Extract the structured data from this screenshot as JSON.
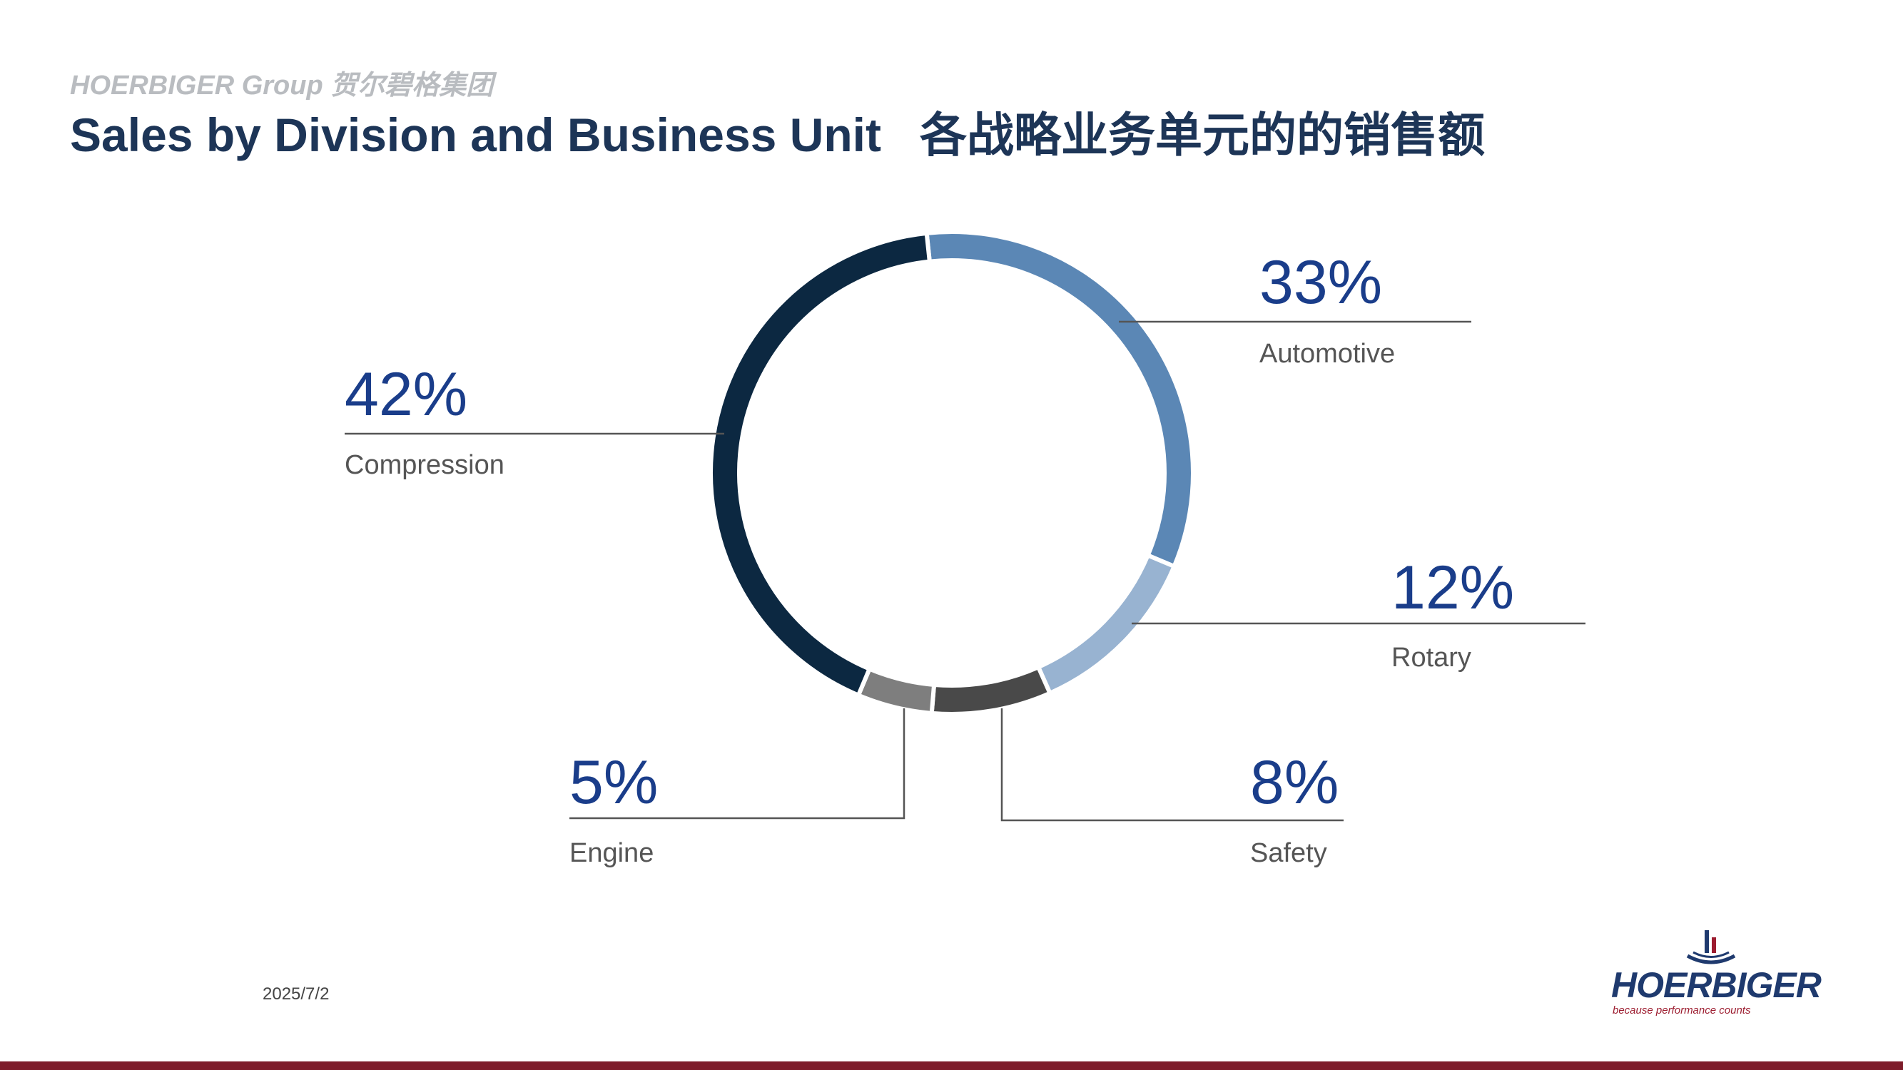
{
  "header": {
    "kicker": "HOERBIGER Group 贺尔碧格集团",
    "title_en": "Sales by Division and Business Unit",
    "title_zh": "各战略业务单元的的销售额"
  },
  "chart_data": {
    "type": "pie",
    "variant": "donut",
    "title": "",
    "slices": [
      {
        "label": "Automotive",
        "value": 33,
        "value_label": "33%",
        "color": "#5b87b5"
      },
      {
        "label": "Rotary",
        "value": 12,
        "value_label": "12%",
        "color": "#98b3d1"
      },
      {
        "label": "Safety",
        "value": 8,
        "value_label": "8%",
        "color": "#494949"
      },
      {
        "label": "Engine",
        "value": 5,
        "value_label": "5%",
        "color": "#7e7e7e"
      },
      {
        "label": "Compression",
        "value": 42,
        "value_label": "42%",
        "color": "#0c2841"
      }
    ],
    "legend": "none"
  },
  "footer": {
    "date": "2025/7/2",
    "logo_text": "HOERBIGER",
    "logo_tagline": "because performance counts"
  },
  "colors": {
    "title": "#1d3557",
    "kicker": "#b9bcc0",
    "percent_label": "#1a3d8a",
    "category_label": "#555555",
    "leader_line": "#555555",
    "bottom_bar": "#7d1c2a",
    "logo_text": "#1f3a6e",
    "logo_accent": "#9c1c2f"
  }
}
